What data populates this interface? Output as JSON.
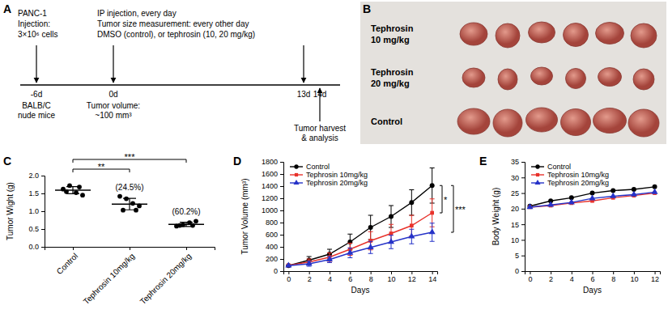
{
  "timeline": {
    "panel_label": "A",
    "events": [
      {
        "time": "-6d",
        "above": [
          "PANC-1",
          "Injection:",
          "3×10⁶ cells"
        ],
        "below": [
          "BALB/C",
          "nude mice"
        ]
      },
      {
        "time": "0d",
        "above": [
          "IP injection, every day",
          "Tumor size measurement: every other day",
          "DMSO (control), or tephrosin (10, 20 mg/kg)"
        ],
        "below": [
          "Tumor volume:",
          "~100 mm³"
        ]
      },
      {
        "time": "13d"
      },
      {
        "time": "14d",
        "below": [
          "Tumor harvest",
          "& analysis"
        ]
      }
    ]
  },
  "photo": {
    "panel_label": "B",
    "rows": [
      {
        "label": [
          "Tephrosin",
          "10 mg/kg"
        ]
      },
      {
        "label": [
          "Tephrosin",
          "20 mg/kg"
        ]
      },
      {
        "label": [
          "Control"
        ]
      }
    ]
  },
  "chart_data": [
    {
      "type": "scatter",
      "panel_label": "C",
      "categories": [
        "Control",
        "Tephrosin 10mg/kg",
        "Tephrosin 20mg/kg"
      ],
      "points": [
        [
          1.62,
          1.72,
          1.52,
          1.45,
          1.55,
          1.68
        ],
        [
          1.42,
          1.35,
          1.22,
          1.15,
          1.03,
          1.03
        ],
        [
          0.58,
          0.62,
          0.68,
          0.72,
          0.6,
          0.6
        ]
      ],
      "means": [
        1.59,
        1.2,
        0.63
      ],
      "errors": [
        0.1,
        0.16,
        0.06
      ],
      "y_label": "Tumor Wight (g)",
      "ylim": [
        0,
        2
      ],
      "yticks": [
        {
          "value": 0,
          "label": "0.0"
        },
        {
          "value": 0.5,
          "label": "0.5"
        },
        {
          "value": 1,
          "label": "1.0"
        },
        {
          "value": 1.5,
          "label": "1.5"
        },
        {
          "value": 2,
          "label": "2.0"
        }
      ],
      "color": "#000000",
      "marker": "circle",
      "annotations": [
        {
          "text": "(24.5%)",
          "category": "Tephrosin 10mg/kg"
        },
        {
          "text": "(60.2%)",
          "category": "Tephrosin 20mg/kg"
        }
      ],
      "brackets": [
        {
          "text": "**",
          "from": "Control",
          "to": "Tephrosin 10mg/kg"
        },
        {
          "text": "***",
          "from": "Control",
          "to": "Tephrosin 20mg/kg"
        }
      ]
    },
    {
      "type": "line",
      "panel_label": "D",
      "x": [
        0,
        2,
        4,
        6,
        8,
        10,
        12,
        14
      ],
      "xlim": [
        -0.5,
        14.5
      ],
      "xticks": [
        0,
        2,
        4,
        6,
        8,
        10,
        12,
        14
      ],
      "ylim": [
        0,
        1800
      ],
      "yticks": [
        0,
        200,
        400,
        600,
        800,
        1000,
        1200,
        1400,
        1600,
        1800
      ],
      "x_label": "Days",
      "y_label": "Tumor Volume (mm³)",
      "legend": "top-left",
      "series": [
        {
          "name": "Control",
          "color": "#000000",
          "marker": "circle",
          "values": [
            90,
            180,
            280,
            480,
            720,
            900,
            1130,
            1410
          ],
          "errors": [
            10,
            60,
            80,
            130,
            200,
            180,
            210,
            290
          ]
        },
        {
          "name": "Tephrosin 10mg/kg",
          "color": "#e8322b",
          "marker": "square",
          "values": [
            95,
            150,
            230,
            360,
            500,
            620,
            750,
            960
          ],
          "errors": [
            10,
            50,
            70,
            100,
            150,
            150,
            170,
            230
          ]
        },
        {
          "name": "Tephrosin 20mg/kg",
          "color": "#2633c8",
          "marker": "triangle",
          "values": [
            90,
            120,
            190,
            300,
            390,
            480,
            570,
            640
          ],
          "errors": [
            10,
            40,
            50,
            80,
            100,
            110,
            120,
            150
          ]
        }
      ],
      "brackets": [
        {
          "text": "*",
          "from": "Control",
          "to": "Tephrosin 10mg/kg"
        },
        {
          "text": "***",
          "from": "Control",
          "to": "Tephrosin 20mg/kg"
        }
      ]
    },
    {
      "type": "line",
      "panel_label": "E",
      "x": [
        0,
        2,
        4,
        6,
        8,
        10,
        12
      ],
      "xlim": [
        -0.5,
        12.5
      ],
      "xticks": [
        0,
        2,
        4,
        6,
        8,
        10,
        12
      ],
      "ylim": [
        0,
        35
      ],
      "yticks": [
        0,
        5,
        10,
        15,
        20,
        25,
        30,
        35
      ],
      "x_label": "Days",
      "y_label": "Body Weight (g)",
      "legend": "top-left",
      "series": [
        {
          "name": "Control",
          "color": "#000000",
          "marker": "circle",
          "values": [
            20.8,
            22.5,
            23.5,
            25.0,
            25.8,
            26.2,
            27.0
          ]
        },
        {
          "name": "Tephrosin 10mg/kg",
          "color": "#e8322b",
          "marker": "square",
          "values": [
            20.5,
            21.0,
            21.8,
            22.5,
            23.5,
            24.2,
            25.0
          ]
        },
        {
          "name": "Tephrosin 20mg/kg",
          "color": "#2633c8",
          "marker": "triangle",
          "values": [
            20.5,
            21.2,
            22.0,
            23.3,
            24.0,
            24.5,
            25.3
          ]
        }
      ]
    }
  ]
}
